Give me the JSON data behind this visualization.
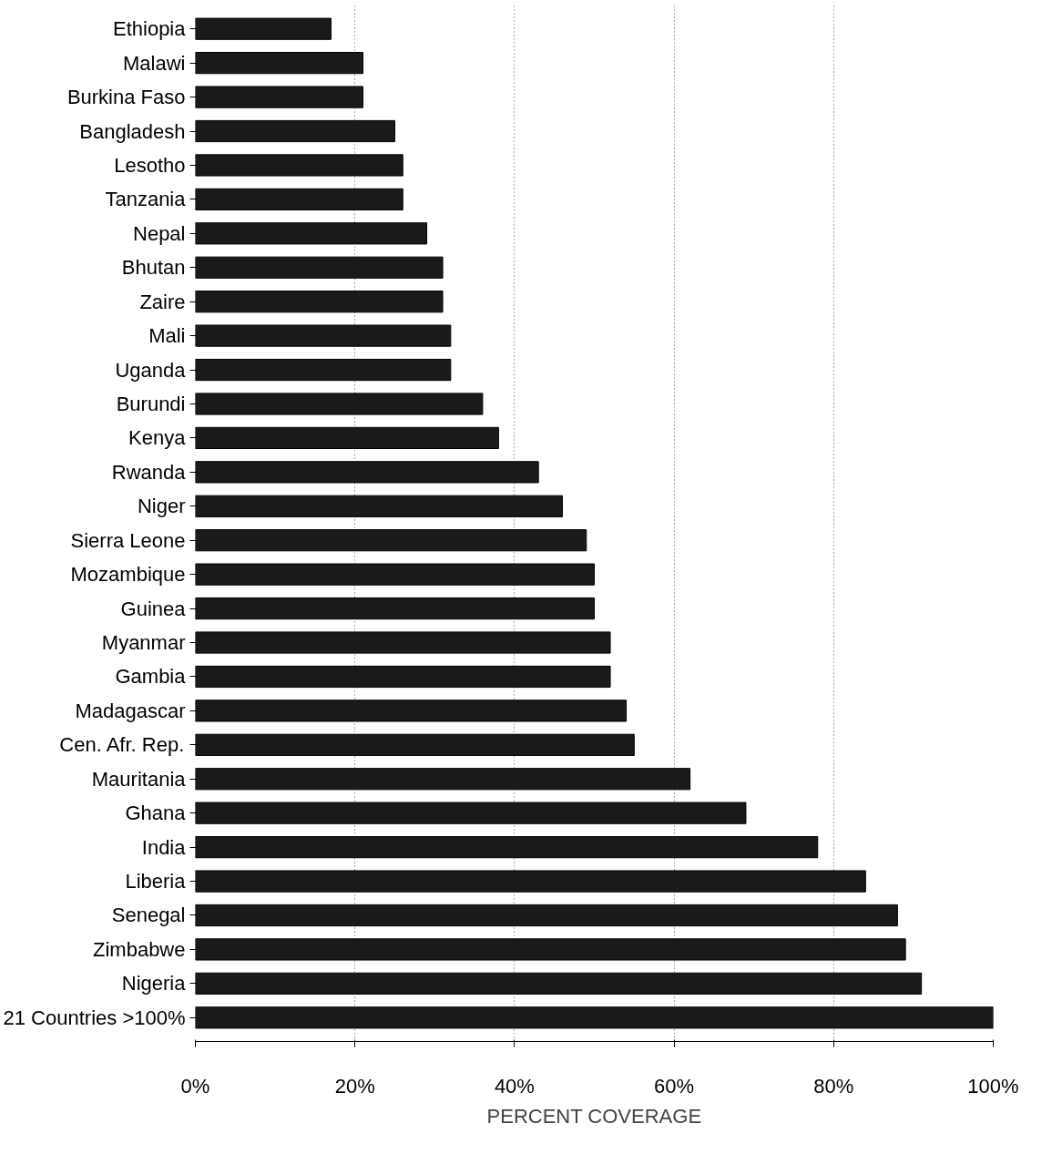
{
  "chart_data": {
    "type": "bar",
    "orientation": "horizontal",
    "xlabel": "PERCENT COVERAGE",
    "categories": [
      "Ethiopia",
      "Malawi",
      "Burkina Faso",
      "Bangladesh",
      "Lesotho",
      "Tanzania",
      "Nepal",
      "Bhutan",
      "Zaire",
      "Mali",
      "Uganda",
      "Burundi",
      "Kenya",
      "Rwanda",
      "Niger",
      "Sierra Leone",
      "Mozambique",
      "Guinea",
      "Myanmar",
      "Gambia",
      "Madagascar",
      "Cen. Afr. Rep.",
      "Mauritania",
      "Ghana",
      "India",
      "Liberia",
      "Senegal",
      "Zimbabwe",
      "Nigeria",
      "21 Countries >100%"
    ],
    "values": [
      17,
      21,
      21,
      25,
      26,
      26,
      29,
      31,
      31,
      32,
      32,
      36,
      38,
      43,
      46,
      49,
      50,
      50,
      52,
      52,
      54,
      55,
      62,
      69,
      78,
      84,
      88,
      89,
      91,
      100
    ],
    "color": "#1a1a1a",
    "xlim": [
      0,
      100
    ],
    "xticks": [
      {
        "value": 0,
        "label": "0%"
      },
      {
        "value": 20,
        "label": "20%"
      },
      {
        "value": 40,
        "label": "40%"
      },
      {
        "value": 60,
        "label": "60%"
      },
      {
        "value": 80,
        "label": "80%"
      },
      {
        "value": 100,
        "label": "100%"
      }
    ],
    "grid": "x"
  }
}
